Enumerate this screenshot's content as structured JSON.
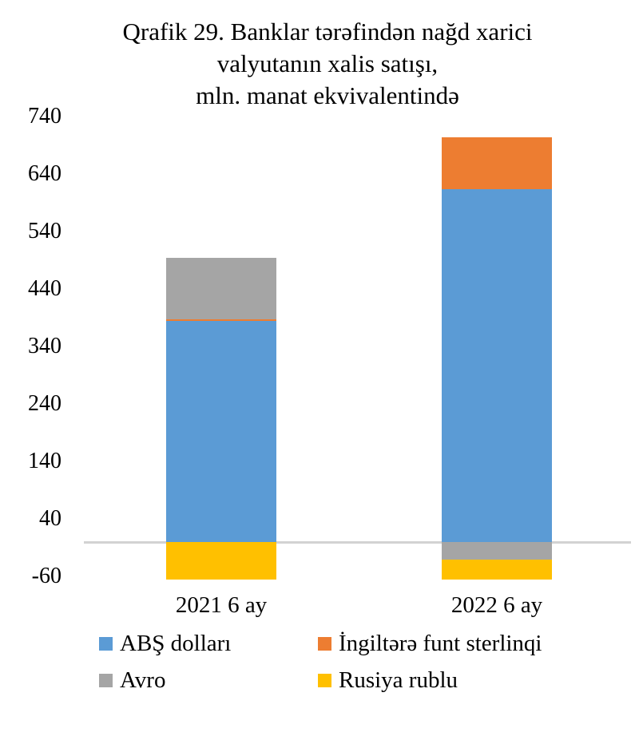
{
  "chart_data": {
    "type": "bar",
    "stacked": true,
    "title": "Qrafik 29. Banklar tərəfindən nağd xarici valyutanın xalis satışı, mln. manat ekvivalentində",
    "title_lines": [
      "Qrafik 29. Banklar tərəfindən nağd xarici",
      "valyutanın xalis satışı,",
      "mln. manat ekvivalentində"
    ],
    "categories": [
      "2021 6 ay",
      "2022 6 ay"
    ],
    "series": [
      {
        "name": "ABŞ dolları",
        "color": "#5B9BD5",
        "values": [
          385,
          614
        ]
      },
      {
        "name": "İngiltərə funt sterlinqi",
        "color": "#ED7D31",
        "values": [
          2,
          90
        ]
      },
      {
        "name": "Avro",
        "color": "#A5A5A5",
        "values": [
          107,
          -30
        ]
      },
      {
        "name": "Rusiya rublu",
        "color": "#FFC000",
        "values": [
          -65,
          -35
        ]
      }
    ],
    "y_ticks": [
      740,
      640,
      540,
      440,
      340,
      240,
      140,
      40,
      -60
    ],
    "ylim": [
      -110,
      760
    ],
    "grid": false,
    "legend_position": "bottom",
    "colors": {
      "zero_line": "#D2D2D2",
      "text": "#000000",
      "background": "#FFFFFF"
    }
  }
}
